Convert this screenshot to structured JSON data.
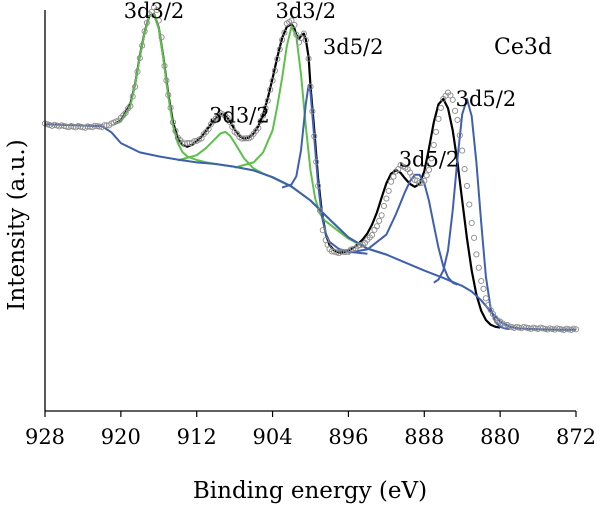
{
  "chart_data": {
    "type": "line",
    "title": "Ce3d",
    "xlabel": "Binding energy (eV)",
    "ylabel": "Intensity (a.u.)",
    "x_reversed": true,
    "xlim": [
      928,
      872
    ],
    "ylim": [
      0,
      100
    ],
    "x_ticks": [
      928,
      920,
      912,
      904,
      896,
      888,
      880,
      872
    ],
    "x_tick_labels": [
      "928",
      "920",
      "912",
      "904",
      "896",
      "888",
      "880",
      "872"
    ],
    "grid": false,
    "legend": "none",
    "annotations": [
      {
        "text": "3d3/2",
        "x": 916.5,
        "y": 98
      },
      {
        "text": "3d3/2",
        "x": 907.5,
        "y": 72
      },
      {
        "text": "3d3/2",
        "x": 900.5,
        "y": 98
      },
      {
        "text": "3d5/2",
        "x": 895.5,
        "y": 89
      },
      {
        "text": "3d5/2",
        "x": 887.5,
        "y": 61
      },
      {
        "text": "3d5/2",
        "x": 881.5,
        "y": 76
      }
    ],
    "colors": {
      "measured": "#8c8c8c",
      "envelope": "#000000",
      "components_3d3_2": "#5cc04a",
      "components_3d5_2": "#3f5fb0",
      "background": "#3f5fb0"
    },
    "series": [
      {
        "type": "scatter",
        "marker": "open-circle",
        "color": "#8c8c8c",
        "x": [
          928,
          926,
          924,
          922,
          921,
          920,
          919,
          918.5,
          918,
          917.5,
          917,
          916.5,
          916.2,
          916,
          915.7,
          915.4,
          915,
          914.5,
          914,
          913.5,
          913,
          912.5,
          912,
          911.5,
          911,
          910.5,
          910,
          909.5,
          909,
          908.5,
          908,
          907.5,
          907,
          906.5,
          906,
          905.5,
          905,
          904.5,
          904,
          903.5,
          903,
          902.5,
          902,
          901.7,
          901.5,
          901.2,
          901,
          900.7,
          900.5,
          900.2,
          900,
          899.6,
          899.2,
          899,
          898.7,
          898.4,
          898,
          897.5,
          897,
          896.5,
          896,
          895.5,
          895,
          894.5,
          894,
          893.5,
          893,
          892.5,
          892,
          891.5,
          891,
          890.5,
          890,
          889.5,
          889,
          888.5,
          888,
          887.5,
          887,
          886.5,
          886,
          885.5,
          885,
          884.5,
          884,
          883.5,
          883,
          882.5,
          882,
          881.5,
          881,
          880.5,
          880,
          879.5,
          879,
          878.5,
          878,
          877,
          876,
          875,
          874,
          873,
          872
        ],
        "y": [
          71.5,
          71,
          70.8,
          71,
          71.5,
          73,
          76,
          81,
          88,
          94.5,
          99,
          100.5,
          100,
          97.5,
          93,
          86,
          79,
          72,
          68,
          67,
          66.7,
          66.9,
          67.3,
          68.2,
          69.6,
          71.3,
          73,
          74.2,
          73.8,
          72,
          69.8,
          68.3,
          67.8,
          68.1,
          69,
          70.7,
          73.6,
          77.6,
          82.4,
          87.6,
          92.6,
          96.5,
          97.5,
          96.1,
          93.8,
          92,
          93.2,
          94,
          92.5,
          88,
          80.7,
          68.6,
          56,
          50,
          45.2,
          42.4,
          40.4,
          39.6,
          39.5,
          39.6,
          39.9,
          40.4,
          41,
          41.6,
          42.6,
          44,
          46,
          49,
          53,
          57,
          59.8,
          61.2,
          60.8,
          59.4,
          57.8,
          56.8,
          57.2,
          60.2,
          66.2,
          73,
          77.8,
          79.6,
          77.6,
          72.4,
          65,
          56,
          47,
          39,
          32.6,
          28.1,
          25,
          23.2,
          22.2,
          21.5,
          21,
          20.9,
          20.8,
          20.7,
          20.6,
          20.5,
          20.4,
          20.4,
          20.3
        ]
      },
      {
        "name": "",
        "type": "line",
        "color": "#000000",
        "x": [
          920.7,
          920,
          919,
          918.5,
          918,
          917.5,
          917,
          916.5,
          916,
          915.5,
          915,
          914.5,
          914,
          913.5,
          913,
          912.5,
          912,
          911.5,
          911,
          910.5,
          910,
          909.5,
          909,
          908.5,
          908,
          907.5,
          907,
          906.5,
          906,
          905.5,
          905,
          904.5,
          904,
          903.5,
          903,
          902.5,
          902,
          901.7,
          901.5,
          901.2,
          901,
          900.7,
          900.5,
          900.2,
          900,
          899.6,
          899.2,
          898.8,
          898.4,
          898,
          897.5,
          897,
          896.5,
          896,
          895.5,
          895,
          894.5,
          894,
          893.5,
          893,
          892.5,
          892,
          891.5,
          891,
          890.5,
          890,
          889.5,
          889,
          888.5,
          888,
          887.5,
          887,
          886.5,
          886,
          885.5,
          885,
          884.5,
          884,
          883.5,
          883,
          882.5,
          882,
          881.5,
          881,
          880.5,
          880
        ],
        "y": [
          71.5,
          72.5,
          76.5,
          81.5,
          88.5,
          94.5,
          98.5,
          99,
          95.5,
          88,
          79,
          72,
          68,
          66.3,
          65.9,
          66.4,
          67.3,
          68.4,
          69.9,
          71.5,
          73,
          74.1,
          73.8,
          72.3,
          70.2,
          68.6,
          67.9,
          68.2,
          69.2,
          71,
          74,
          78,
          83,
          88.2,
          93,
          95.8,
          96.5,
          95.4,
          93.8,
          92.8,
          93.6,
          94.1,
          92.7,
          88.3,
          81,
          70,
          58,
          49.5,
          44.2,
          41.4,
          40,
          39.5,
          39.6,
          40,
          40.7,
          41.6,
          42.8,
          44.3,
          46.5,
          49.5,
          53.2,
          56.8,
          59.2,
          60,
          59.4,
          57.9,
          56.6,
          55.9,
          56.6,
          59.8,
          65.5,
          72,
          76.5,
          77.8,
          75.5,
          70,
          62,
          52.5,
          43,
          35,
          29,
          25,
          22.7,
          21.5,
          21,
          20.8
        ]
      },
      {
        "name": "",
        "type": "line",
        "color": "#5cc04a",
        "x": [
          920.7,
          920,
          919,
          918.5,
          918,
          917.5,
          917,
          916.5,
          916,
          915.5,
          915,
          914.5,
          914,
          913.5,
          913,
          912,
          911,
          910,
          908,
          906,
          904,
          902,
          900,
          898,
          896,
          894,
          892
        ],
        "y": [
          71.5,
          72.2,
          76,
          81.4,
          88.3,
          94.4,
          98.4,
          98.9,
          95.4,
          87.7,
          78.5,
          71.1,
          66.8,
          64.6,
          63.5,
          62.6,
          62,
          61.6,
          60.9,
          60,
          58.3,
          56,
          52.5,
          47.8,
          43.3,
          40.5,
          39
        ]
      },
      {
        "name": "",
        "type": "line",
        "color": "#5cc04a",
        "x": [
          914,
          912,
          911,
          910,
          909.5,
          909,
          908.5,
          908,
          907,
          906,
          905,
          904,
          902,
          900,
          898,
          896,
          894,
          892
        ],
        "y": [
          62.5,
          63.8,
          65.6,
          68,
          69.2,
          69.6,
          68.7,
          66.9,
          63,
          60.5,
          59.2,
          58.2,
          55.9,
          52.5,
          47.8,
          43.3,
          40.5,
          39
        ]
      },
      {
        "name": "",
        "type": "line",
        "color": "#5cc04a",
        "x": [
          908,
          906,
          905,
          904,
          903.5,
          903,
          902.5,
          902,
          901.5,
          901,
          900.5,
          900,
          899.5,
          899,
          898.5,
          898,
          897,
          896,
          894,
          892
        ],
        "y": [
          60.7,
          62,
          64.5,
          70,
          76,
          83,
          91,
          95.8,
          93.5,
          84,
          71,
          60,
          53,
          49.2,
          47.5,
          46.6,
          44.8,
          43,
          40.5,
          39
        ]
      },
      {
        "name": "",
        "type": "line",
        "color": "#3f5fb0",
        "x": [
          903,
          902,
          901.5,
          901,
          900.5,
          900.2,
          900,
          899.6,
          899.2,
          898.8,
          898.4,
          898,
          897,
          896,
          894
        ],
        "y": [
          55.7,
          56.5,
          58.5,
          65,
          76.5,
          81.3,
          79.5,
          68,
          56.5,
          48.6,
          44.3,
          42.2,
          40.4,
          39.7,
          39.2
        ]
      },
      {
        "name": "",
        "type": "line",
        "color": "#3f5fb0",
        "x": [
          896,
          894,
          892,
          891,
          890,
          889.5,
          889,
          888.5,
          888,
          887.5,
          887,
          886.5,
          886,
          885.5,
          885,
          884.5
        ],
        "y": [
          39.5,
          40.3,
          44,
          49,
          54.8,
          57.3,
          58.9,
          58.9,
          56.8,
          52.4,
          46.4,
          40.7,
          36.1,
          33.4,
          32,
          31.5
        ]
      },
      {
        "name": "",
        "type": "line",
        "color": "#3f5fb0",
        "x": [
          887,
          886.5,
          886,
          885.5,
          885,
          884.5,
          884,
          883.5,
          883,
          882.5,
          882,
          881.5,
          881,
          880.5,
          880,
          879.5,
          879
        ],
        "y": [
          32,
          32.8,
          35,
          40,
          50,
          63,
          74,
          77.8,
          73.5,
          62,
          47,
          33.5,
          25.5,
          22.2,
          21,
          20.6,
          20.4
        ]
      },
      {
        "name": "",
        "type": "line",
        "color": "#3f5fb0",
        "x": [
          928,
          924,
          922,
          921,
          920,
          918,
          916,
          914,
          912,
          910,
          908,
          906,
          904,
          902,
          900,
          898,
          896,
          894,
          892,
          890,
          888,
          886,
          884,
          883,
          882,
          881,
          880,
          879,
          878,
          876,
          874,
          872
        ],
        "y": [
          71.5,
          71.2,
          71,
          69.5,
          66.8,
          64.5,
          63.5,
          62.7,
          62,
          61.6,
          60.9,
          60,
          58.3,
          56,
          52.5,
          47.8,
          43.3,
          40.5,
          39,
          37,
          35,
          33.2,
          31.2,
          29.8,
          27.6,
          24.8,
          22.3,
          21,
          20.6,
          20.4,
          20.3,
          20.3
        ]
      }
    ]
  }
}
